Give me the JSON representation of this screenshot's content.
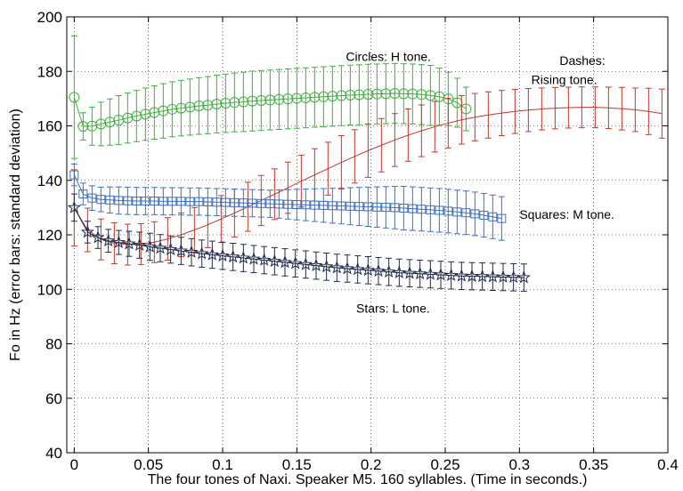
{
  "chart_data": {
    "type": "line",
    "xlabel": "The four tones of Naxi. Speaker M5. 160 syllables. (Time in seconds.)",
    "ylabel": "Fo in Hz (error bars: standard deviation)",
    "xlim": [
      -0.005,
      0.4
    ],
    "ylim": [
      40,
      200
    ],
    "xticks": [
      0,
      0.05,
      0.1,
      0.15,
      0.2,
      0.25,
      0.3,
      0.35,
      0.4
    ],
    "xtick_labels": [
      "0",
      "0.05",
      "0.1",
      "0.15",
      "0.2",
      "0.25",
      "0.3",
      "0.35",
      "0.4"
    ],
    "yticks": [
      40,
      60,
      80,
      100,
      120,
      140,
      160,
      180,
      200
    ],
    "ytick_labels": [
      "40",
      "60",
      "80",
      "100",
      "120",
      "140",
      "160",
      "180",
      "200"
    ],
    "grid": true,
    "annotations": [
      {
        "text": "Circles: H tone.",
        "x": 0.183,
        "y": 183.8
      },
      {
        "text": "Dashes:",
        "x": 0.327,
        "y": 182.3
      },
      {
        "text": "Rising tone.",
        "x": 0.308,
        "y": 175.4
      },
      {
        "text": "Squares: M tone.",
        "x": 0.3,
        "y": 125.8
      },
      {
        "text": "Stars: L tone.",
        "x": 0.19,
        "y": 91.5
      }
    ],
    "series": [
      {
        "marker": "circle",
        "color": "#3bb03b",
        "x": [
          0,
          0.006,
          0.012,
          0.018,
          0.024,
          0.03,
          0.036,
          0.042,
          0.048,
          0.054,
          0.06,
          0.066,
          0.072,
          0.078,
          0.084,
          0.09,
          0.096,
          0.102,
          0.108,
          0.114,
          0.12,
          0.126,
          0.132,
          0.138,
          0.144,
          0.15,
          0.156,
          0.162,
          0.168,
          0.174,
          0.18,
          0.186,
          0.192,
          0.198,
          0.204,
          0.21,
          0.216,
          0.222,
          0.228,
          0.234,
          0.24,
          0.246,
          0.252,
          0.258,
          0.264
        ],
        "y": [
          170.5,
          159.8,
          159.9,
          160.7,
          161.4,
          162.1,
          162.9,
          163.6,
          164.3,
          164.9,
          165.5,
          166.1,
          166.5,
          166.9,
          167.3,
          167.6,
          168.0,
          168.3,
          168.6,
          168.8,
          169.1,
          169.3,
          169.5,
          169.7,
          169.9,
          170.1,
          170.3,
          170.5,
          170.7,
          170.9,
          171.1,
          171.3,
          171.4,
          171.6,
          171.7,
          171.8,
          171.9,
          171.8,
          171.7,
          171.5,
          171.2,
          170.7,
          169.9,
          168.5,
          166.2
        ],
        "sd": [
          22.5,
          5,
          7,
          8,
          8.5,
          9,
          9.2,
          9.4,
          9.6,
          9.8,
          10,
          10.1,
          10.2,
          10.3,
          10.4,
          10.5,
          10.6,
          10.7,
          10.8,
          10.9,
          11,
          11,
          11,
          11,
          11,
          11,
          11,
          11,
          11,
          11,
          11,
          11,
          11,
          11,
          11,
          11,
          11,
          11,
          11,
          11,
          11,
          10.5,
          9.8,
          9,
          8
        ]
      },
      {
        "marker": "none",
        "color": "#c0392b",
        "x": [
          0,
          0.009,
          0.018,
          0.027,
          0.036,
          0.045,
          0.054,
          0.063,
          0.072,
          0.081,
          0.09,
          0.099,
          0.108,
          0.117,
          0.126,
          0.135,
          0.144,
          0.153,
          0.162,
          0.171,
          0.18,
          0.189,
          0.198,
          0.207,
          0.216,
          0.225,
          0.234,
          0.243,
          0.252,
          0.261,
          0.27,
          0.279,
          0.288,
          0.297,
          0.306,
          0.315,
          0.324,
          0.333,
          0.342,
          0.351,
          0.36,
          0.369,
          0.378,
          0.387,
          0.396
        ],
        "y": [
          129.9,
          121.8,
          118.3,
          116.9,
          116.4,
          116.6,
          117.3,
          118.5,
          120.0,
          121.8,
          123.7,
          125.8,
          128.0,
          130.3,
          132.6,
          134.9,
          137.3,
          139.7,
          142.0,
          144.3,
          146.6,
          148.8,
          150.9,
          152.9,
          154.8,
          156.6,
          158.2,
          159.7,
          161.0,
          162.2,
          163.2,
          164.0,
          164.7,
          165.3,
          165.8,
          166.2,
          166.5,
          166.7,
          166.8,
          166.8,
          166.6,
          166.3,
          165.9,
          165.3,
          164.5
        ],
        "sd": [
          14,
          8,
          7.5,
          7.5,
          7.5,
          7.5,
          7.5,
          7.8,
          8,
          8.2,
          8.4,
          8.6,
          8.8,
          9,
          9.2,
          9.3,
          9.4,
          9.5,
          9.6,
          9.7,
          9.8,
          9.8,
          9.8,
          9.8,
          9.7,
          9.6,
          9.5,
          9.3,
          9.1,
          8.9,
          8.7,
          8.5,
          8.3,
          8.1,
          7.9,
          7.7,
          7.6,
          7.5,
          7.5,
          7.5,
          7.6,
          7.8,
          8,
          8.5,
          9
        ]
      },
      {
        "marker": "square",
        "color": "#3a6fc4",
        "x": [
          0,
          0.006,
          0.012,
          0.018,
          0.024,
          0.03,
          0.036,
          0.042,
          0.048,
          0.054,
          0.06,
          0.066,
          0.072,
          0.078,
          0.084,
          0.09,
          0.096,
          0.102,
          0.108,
          0.114,
          0.12,
          0.126,
          0.132,
          0.138,
          0.144,
          0.15,
          0.156,
          0.162,
          0.168,
          0.174,
          0.18,
          0.186,
          0.192,
          0.198,
          0.204,
          0.21,
          0.216,
          0.222,
          0.228,
          0.234,
          0.24,
          0.246,
          0.252,
          0.258,
          0.264,
          0.27,
          0.276,
          0.282,
          0.288
        ],
        "y": [
          142.0,
          135.0,
          133.5,
          133.0,
          132.8,
          132.6,
          132.5,
          132.4,
          132.4,
          132.4,
          132.3,
          132.3,
          132.3,
          132.2,
          132.2,
          132.1,
          132.0,
          131.9,
          131.8,
          131.7,
          131.6,
          131.5,
          131.4,
          131.3,
          131.2,
          131.1,
          131.0,
          130.9,
          130.8,
          130.7,
          130.6,
          130.5,
          130.4,
          130.3,
          130.2,
          130.1,
          130.0,
          129.8,
          129.6,
          129.4,
          129.2,
          129.0,
          128.7,
          128.4,
          128.1,
          127.7,
          127.2,
          126.6,
          126.0
        ],
        "sd": [
          4,
          4,
          4.5,
          4.5,
          4.8,
          5,
          5,
          5,
          5,
          5,
          5,
          5,
          5,
          5,
          5,
          5,
          5,
          5,
          5,
          5,
          5,
          5,
          5,
          5.2,
          5.4,
          5.6,
          5.8,
          6,
          6.2,
          6.4,
          6.6,
          6.8,
          7,
          7.2,
          7.4,
          7.6,
          7.8,
          8,
          8,
          8,
          8,
          8,
          8,
          8,
          8,
          8,
          8,
          8,
          8
        ]
      },
      {
        "marker": "star",
        "color": "#1f2a4a",
        "x": [
          0,
          0.009,
          0.016,
          0.023,
          0.03,
          0.037,
          0.044,
          0.051,
          0.058,
          0.065,
          0.072,
          0.079,
          0.086,
          0.093,
          0.1,
          0.107,
          0.114,
          0.121,
          0.128,
          0.135,
          0.142,
          0.149,
          0.156,
          0.163,
          0.17,
          0.177,
          0.184,
          0.191,
          0.198,
          0.205,
          0.212,
          0.219,
          0.226,
          0.233,
          0.24,
          0.247,
          0.254,
          0.261,
          0.268,
          0.275,
          0.282,
          0.289,
          0.296,
          0.303
        ],
        "y": [
          130.0,
          121.0,
          119.0,
          117.8,
          117.2,
          116.7,
          116.2,
          115.6,
          115.1,
          114.6,
          114.1,
          113.6,
          113.1,
          112.7,
          112.3,
          111.9,
          111.5,
          111.1,
          110.7,
          110.3,
          109.9,
          109.5,
          109.1,
          108.7,
          108.3,
          107.9,
          107.6,
          107.3,
          107.0,
          106.7,
          106.4,
          106.1,
          105.9,
          105.7,
          105.5,
          105.3,
          105.1,
          104.9,
          104.8,
          104.7,
          104.6,
          104.5,
          104.4,
          104.3
        ],
        "sd": [
          5,
          4,
          4,
          4.2,
          4.4,
          4.6,
          4.8,
          5,
          5,
          5,
          5,
          5,
          5,
          5,
          5,
          5,
          5,
          5,
          5,
          5,
          5,
          5,
          5,
          5,
          5,
          5,
          5,
          5,
          5,
          5,
          5,
          5,
          5,
          5,
          5,
          5,
          5,
          5,
          5,
          5,
          5,
          5,
          5,
          5
        ]
      }
    ]
  }
}
